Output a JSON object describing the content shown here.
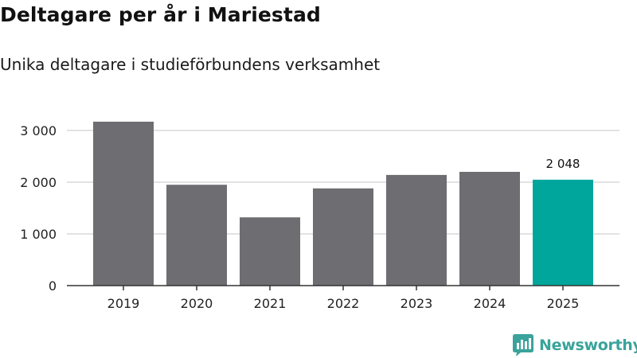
{
  "title": "Deltagare per år i Mariestad",
  "subtitle": "Unika deltagare i studieförbundens verksamhet",
  "colors": {
    "bar": "#6e6d72",
    "highlight": "#00a69c",
    "grid": "#d9d9d9",
    "axis": "#333333",
    "brand": "#3aa39b"
  },
  "chart_data": {
    "type": "bar",
    "categories": [
      "2019",
      "2020",
      "2021",
      "2022",
      "2023",
      "2024",
      "2025"
    ],
    "values": [
      3170,
      1950,
      1320,
      1880,
      2140,
      2200,
      2048
    ],
    "highlight_index": 6,
    "data_labels": [
      {
        "index": 6,
        "text": "2 048"
      }
    ],
    "y_ticks": [
      {
        "value": 0,
        "label": "0"
      },
      {
        "value": 1000,
        "label": "1 000"
      },
      {
        "value": 2000,
        "label": "2 000"
      },
      {
        "value": 3000,
        "label": "3 000"
      }
    ],
    "ylim": [
      0,
      3000
    ],
    "grid": true,
    "xlabel": "",
    "ylabel": ""
  },
  "brand": {
    "name": "Newsworthy",
    "icon": "newsworthy-logo-icon"
  }
}
